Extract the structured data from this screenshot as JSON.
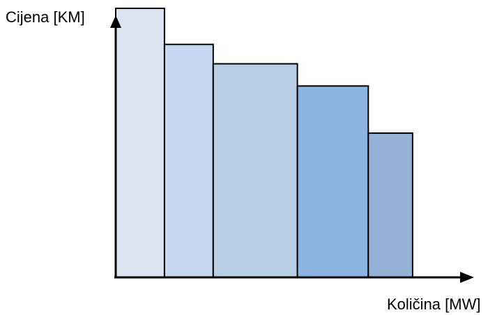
{
  "chart_data": {
    "type": "bar",
    "title": "",
    "ylabel": "Cijena [KM]",
    "xlabel": "Količina [MW]",
    "ylim": [
      0,
      100
    ],
    "bars": [
      {
        "start": 0,
        "width": 11,
        "value": 97,
        "color": "#dbe5f1"
      },
      {
        "start": 11,
        "width": 11,
        "value": 84,
        "color": "#c6d9f1"
      },
      {
        "start": 22,
        "width": 19,
        "value": 77,
        "color": "#b8cce4"
      },
      {
        "start": 41,
        "width": 16,
        "value": 69,
        "color": "#8db3e2"
      },
      {
        "start": 57,
        "width": 10,
        "value": 52,
        "color": "#95b3d7"
      }
    ],
    "xlim": [
      0,
      87
    ],
    "grid": false,
    "axis_color": "#000000"
  }
}
